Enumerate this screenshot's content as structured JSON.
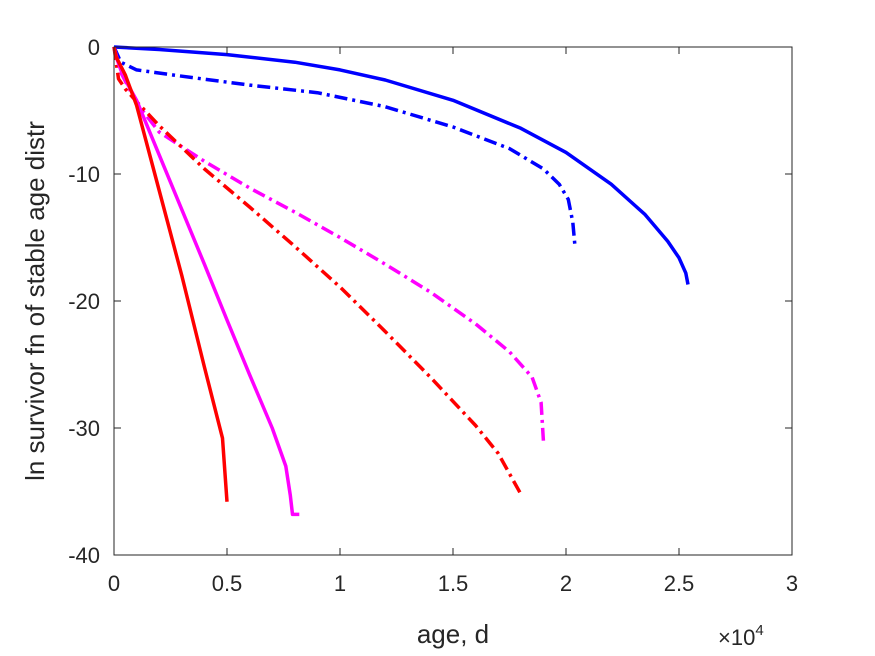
{
  "chart_data": {
    "type": "line",
    "title": "",
    "xlabel": "age, d",
    "ylabel": "ln survivor fn of stable age distr",
    "x_exponent_label": "×10",
    "x_exponent_power": "4",
    "xlim": [
      0,
      30000
    ],
    "ylim": [
      -40,
      0
    ],
    "xticks": [
      0,
      5000,
      10000,
      15000,
      20000,
      25000,
      30000
    ],
    "xtick_labels": [
      "0",
      "0.5",
      "1",
      "1.5",
      "2",
      "2.5",
      "3"
    ],
    "yticks": [
      0,
      -10,
      -20,
      -30,
      -40
    ],
    "ytick_labels": [
      "0",
      "-10",
      "-20",
      "-30",
      "-40"
    ],
    "grid": false,
    "legend": "none",
    "series": [
      {
        "color": "#0000ff",
        "style": "solid",
        "x": [
          0,
          2000,
          5000,
          8000,
          10000,
          12000,
          15000,
          18000,
          20000,
          22000,
          23500,
          24500,
          25000,
          25300,
          25400
        ],
        "y": [
          0,
          -0.2,
          -0.6,
          -1.2,
          -1.8,
          -2.6,
          -4.2,
          -6.4,
          -8.3,
          -10.8,
          -13.2,
          -15.3,
          -16.6,
          -17.8,
          -18.7
        ]
      },
      {
        "color": "#0000ff",
        "style": "dashdot",
        "x": [
          0,
          300,
          1000,
          3000,
          6000,
          9000,
          12000,
          15000,
          17500,
          19000,
          19700,
          20100,
          20300,
          20400
        ],
        "y": [
          0,
          -1.2,
          -1.8,
          -2.3,
          -3.0,
          -3.6,
          -4.7,
          -6.3,
          -8.0,
          -9.6,
          -10.8,
          -12.0,
          -13.8,
          -15.7
        ]
      },
      {
        "color": "#ff00ff",
        "style": "dashdot",
        "x": [
          0,
          300,
          1000,
          2000,
          4000,
          6000,
          8000,
          10000,
          12000,
          14000,
          16000,
          17500,
          18500,
          18900,
          19000
        ],
        "y": [
          0,
          -2.0,
          -4.4,
          -6.7,
          -9.0,
          -11.1,
          -13.0,
          -15.0,
          -17.1,
          -19.3,
          -21.8,
          -24.0,
          -26.0,
          -28.0,
          -31.0
        ]
      },
      {
        "color": "#ff0000",
        "style": "dashdot",
        "x": [
          0,
          200,
          500,
          1000,
          2000,
          4000,
          6000,
          8000,
          10000,
          12000,
          14000,
          16000,
          17000,
          18000
        ],
        "y": [
          0,
          -2.5,
          -3.3,
          -4.3,
          -6.2,
          -9.6,
          -12.6,
          -15.7,
          -18.9,
          -22.4,
          -26.0,
          -29.8,
          -32.0,
          -35.2
        ]
      },
      {
        "color": "#ff00ff",
        "style": "solid",
        "x": [
          0,
          100,
          300,
          500,
          1000,
          2000,
          3000,
          4000,
          5000,
          6000,
          7000,
          7600,
          7800,
          7900,
          8000,
          8200
        ],
        "y": [
          0,
          -0.8,
          -1.8,
          -2.6,
          -4.2,
          -8.5,
          -12.8,
          -17.1,
          -21.5,
          -25.8,
          -30.0,
          -33.0,
          -35.3,
          -36.8,
          -36.8,
          -36.8
        ]
      },
      {
        "color": "#ff0000",
        "style": "solid",
        "x": [
          0,
          100,
          300,
          500,
          1000,
          2000,
          3000,
          4000,
          4800,
          5000
        ],
        "y": [
          0,
          -0.8,
          -1.5,
          -2.2,
          -4.6,
          -11.3,
          -18.0,
          -25.2,
          -30.8,
          -35.8
        ]
      }
    ]
  }
}
